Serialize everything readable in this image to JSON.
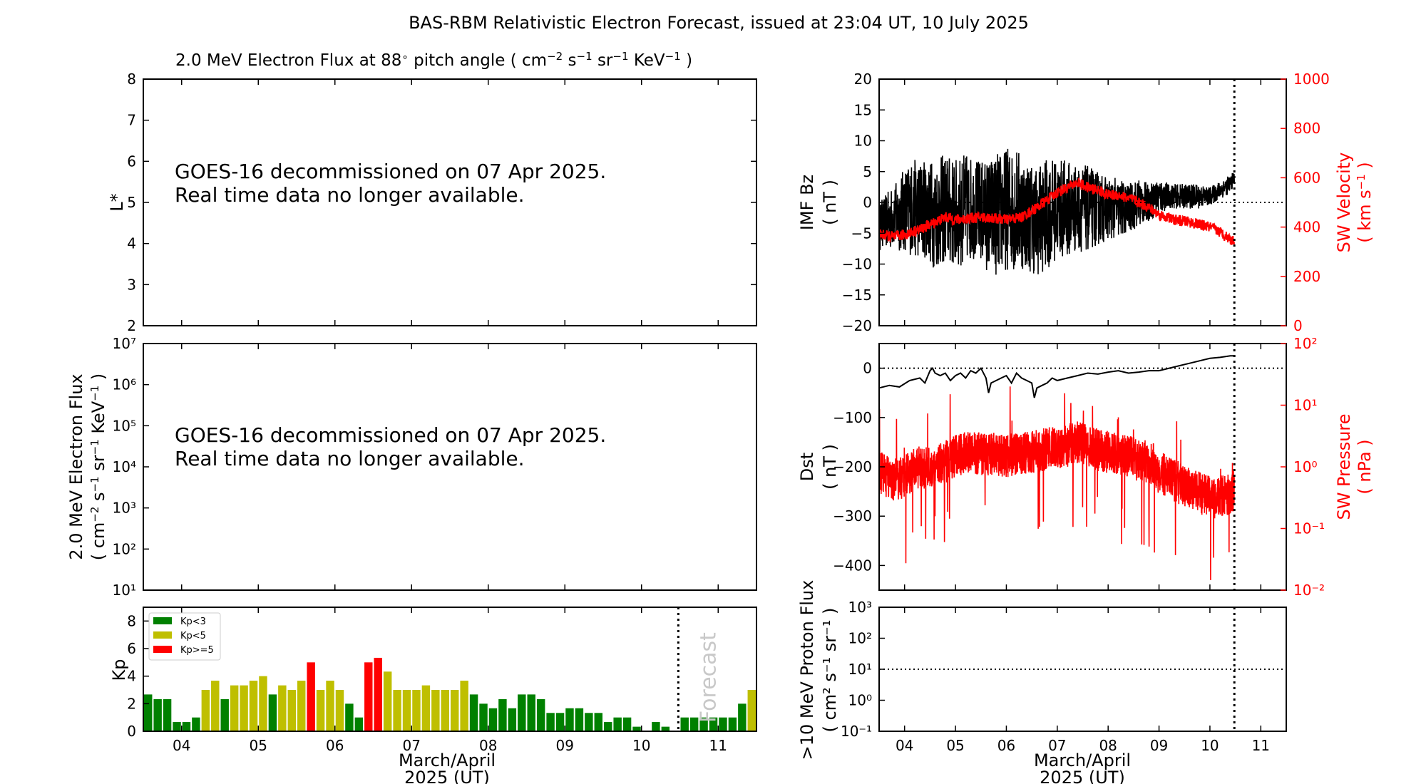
{
  "figure": {
    "title": "BAS-RBM Relativistic Electron Forecast, issued at 23:04 UT, 10 July 2025",
    "xaxis_label_line1": "March/April",
    "xaxis_label_line2": "2025 (UT)",
    "day_ticks": [
      "04",
      "05",
      "06",
      "07",
      "08",
      "09",
      "10",
      "11"
    ]
  },
  "chart_data": [
    {
      "id": "lstar",
      "type": "heatmap",
      "title": "2.0 MeV Electron Flux at 88∘ pitch angle ( cm−2 s−1 sr−1 KeV−1 )",
      "ylabel": "L*",
      "ylim": [
        2,
        8
      ],
      "yticks": [
        "2",
        "3",
        "4",
        "5",
        "6",
        "7",
        "8"
      ],
      "notice_line1": "GOES-16 decommissioned on 07 Apr 2025.",
      "notice_line2": "Real time data no longer available."
    },
    {
      "id": "eflux",
      "type": "line",
      "ylabel_line1": "2.0 MeV Electron Flux",
      "ylabel_line2": "( cm−2 s−1 sr−1 KeV−1 )",
      "yscale": "log",
      "ylim": [
        10,
        10000000
      ],
      "yticks": [
        "10¹",
        "10²",
        "10³",
        "10⁴",
        "10⁵",
        "10⁶",
        "10⁷"
      ],
      "notice_line1": "GOES-16 decommissioned on 07 Apr 2025.",
      "notice_line2": "Real time data no longer available."
    },
    {
      "id": "kp",
      "type": "bar",
      "ylabel": "Kp",
      "ylim": [
        0,
        9
      ],
      "yticks": [
        "0",
        "2",
        "4",
        "6",
        "8"
      ],
      "xlim_days": [
        3.5,
        11.5
      ],
      "forecast_start_day": 10.48,
      "forecast_label": "Forecast",
      "legend": [
        {
          "label": "Kp<3",
          "color": "#008000"
        },
        {
          "label": "Kp<5",
          "color": "#bfbf00"
        },
        {
          "label": "Kp>=5",
          "color": "#ff0000"
        }
      ],
      "bin_width_days": 0.125,
      "first_bin_start_day": 3.5,
      "values": [
        2.67,
        2.33,
        2.33,
        0.67,
        0.67,
        1.0,
        3.0,
        3.67,
        2.33,
        3.33,
        3.33,
        3.67,
        4.0,
        2.67,
        3.33,
        3.0,
        3.67,
        5.0,
        3.0,
        3.67,
        3.0,
        2.0,
        1.0,
        5.0,
        5.33,
        4.33,
        3.0,
        3.0,
        3.0,
        3.33,
        3.0,
        3.0,
        3.0,
        3.67,
        2.67,
        2.0,
        1.67,
        2.33,
        1.67,
        2.67,
        2.67,
        2.33,
        1.33,
        1.33,
        1.67,
        1.67,
        1.33,
        1.33,
        0.67,
        1.0,
        1.0,
        0.33,
        0,
        0.67,
        0.33,
        0,
        1.0,
        1.0,
        1.0,
        1.0,
        1.0,
        1.0,
        2.0,
        3.0
      ]
    },
    {
      "id": "imf",
      "type": "line",
      "ylabel_line1": "IMF Bz",
      "ylabel_line2": "( nT )",
      "ylim": [
        -20,
        20
      ],
      "yticks": [
        "−20",
        "−15",
        "−10",
        "−5",
        "0",
        "5",
        "10",
        "15",
        "20"
      ],
      "y2label_line1": "SW Velocity",
      "y2label_line2": "( km s−1 )",
      "y2lim": [
        0,
        1000
      ],
      "y2ticks": [
        "0",
        "200",
        "400",
        "600",
        "800",
        "1000"
      ],
      "y2color": "#ff0000",
      "data_end_day": 10.48,
      "series": [
        {
          "name": "IMF Bz",
          "color": "#000000",
          "x": [
            3.5,
            3.6,
            3.7,
            3.8,
            3.9,
            4.0,
            4.2,
            4.4,
            4.6,
            4.8,
            5.0,
            5.2,
            5.4,
            5.6,
            5.8,
            6.0,
            6.2,
            6.4,
            6.6,
            6.8,
            7.0,
            7.2,
            7.4,
            7.6,
            7.8,
            8.0,
            8.2,
            8.4,
            8.6,
            8.8,
            9.0,
            9.2,
            9.4,
            9.6,
            9.8,
            10.0,
            10.2,
            10.4,
            10.48
          ],
          "center": [
            -4,
            -3,
            -3,
            -2,
            -2,
            -1,
            -1,
            -1,
            -2,
            -1,
            -2,
            -1,
            -1,
            -2,
            -2,
            -1,
            -1,
            -2,
            -3,
            -2,
            -1,
            -1,
            -1,
            -1,
            -1,
            -1,
            -1,
            -1,
            0,
            0,
            1,
            1,
            1,
            1,
            1,
            1,
            2,
            3,
            4
          ],
          "amplitude": [
            4,
            4,
            5,
            5,
            6,
            7,
            8,
            8,
            9,
            9,
            9,
            9,
            8,
            9,
            10,
            10,
            10,
            9,
            9,
            9,
            8,
            8,
            7,
            7,
            6,
            5,
            5,
            4,
            4,
            3,
            3,
            2,
            2,
            2,
            2,
            1.5,
            1.5,
            1.5,
            1
          ]
        },
        {
          "name": "SW Velocity",
          "color": "#ff0000",
          "x": [
            3.5,
            3.8,
            4.0,
            4.3,
            4.6,
            4.8,
            5.0,
            5.5,
            5.8,
            6.0,
            6.3,
            6.6,
            6.8,
            7.0,
            7.2,
            7.4,
            7.6,
            7.8,
            8.0,
            8.2,
            8.5,
            8.8,
            9.0,
            9.3,
            9.6,
            9.8,
            10.0,
            10.2,
            10.48
          ],
          "values": [
            370,
            360,
            370,
            390,
            420,
            440,
            430,
            440,
            435,
            430,
            440,
            480,
            510,
            540,
            560,
            580,
            560,
            550,
            530,
            530,
            510,
            480,
            450,
            430,
            420,
            410,
            400,
            380,
            340
          ]
        }
      ]
    },
    {
      "id": "dst",
      "type": "line",
      "ylabel_line1": "Dst",
      "ylabel_line2": "( nT )",
      "ylim": [
        -450,
        50
      ],
      "yticks": [
        "−400",
        "−300",
        "−200",
        "−100",
        "0"
      ],
      "y2label_line1": "SW Pressure",
      "y2label_line2": "( nPa )",
      "y2scale": "log",
      "y2lim": [
        0.01,
        100
      ],
      "y2ticks": [
        "10⁻²",
        "10⁻¹",
        "10⁰",
        "10¹",
        "10²"
      ],
      "y2color": "#ff0000",
      "series": [
        {
          "name": "Dst",
          "color": "#000000",
          "x": [
            3.5,
            3.7,
            3.9,
            4.1,
            4.3,
            4.4,
            4.5,
            4.55,
            4.6,
            4.7,
            4.8,
            4.9,
            5.0,
            5.1,
            5.2,
            5.3,
            5.4,
            5.5,
            5.6,
            5.65,
            5.7,
            5.8,
            5.9,
            6.0,
            6.1,
            6.2,
            6.3,
            6.4,
            6.5,
            6.55,
            6.6,
            6.7,
            6.8,
            6.9,
            7.0,
            7.2,
            7.4,
            7.6,
            7.8,
            8.0,
            8.2,
            8.4,
            8.6,
            8.8,
            9.0,
            9.2,
            9.4,
            9.6,
            9.8,
            10.0,
            10.2,
            10.4,
            10.48
          ],
          "values": [
            -40,
            -35,
            -38,
            -25,
            -20,
            -30,
            -5,
            0,
            -10,
            -15,
            -10,
            -25,
            -15,
            -10,
            -20,
            -5,
            -10,
            0,
            -20,
            -50,
            -30,
            -25,
            -20,
            -15,
            -30,
            -10,
            -20,
            -25,
            -30,
            -60,
            -40,
            -35,
            -30,
            -20,
            -25,
            -20,
            -15,
            -10,
            -12,
            -8,
            -5,
            -10,
            -8,
            -5,
            -5,
            0,
            5,
            10,
            15,
            20,
            22,
            25,
            25
          ]
        },
        {
          "name": "SW Pressure",
          "color": "#ff0000",
          "x": [
            3.5,
            3.8,
            4.0,
            4.3,
            4.5,
            4.8,
            5.0,
            5.3,
            5.5,
            5.8,
            6.0,
            6.3,
            6.6,
            6.9,
            7.0,
            7.2,
            7.4,
            7.6,
            7.8,
            8.0,
            8.3,
            8.6,
            8.9,
            9.0,
            9.3,
            9.6,
            9.9,
            10.1,
            10.3,
            10.48
          ],
          "values": [
            0.8,
            0.6,
            0.7,
            1.0,
            0.9,
            1.2,
            1.5,
            1.8,
            1.6,
            1.6,
            1.5,
            1.7,
            1.8,
            2.0,
            1.9,
            2.2,
            2.5,
            2.2,
            1.9,
            1.7,
            1.5,
            1.3,
            1.1,
            0.8,
            0.6,
            0.45,
            0.35,
            0.3,
            0.35,
            0.4
          ]
        }
      ]
    },
    {
      "id": "proton",
      "type": "line",
      "ylabel_line1": ">10 MeV Proton Flux",
      "ylabel_line2": "( cm² s⁻¹ sr⁻¹ )",
      "yscale": "log",
      "ylim": [
        0.1,
        1000
      ],
      "yticks": [
        "10⁻¹",
        "10⁰",
        "10¹",
        "10²",
        "10³"
      ],
      "threshold": 10
    }
  ]
}
